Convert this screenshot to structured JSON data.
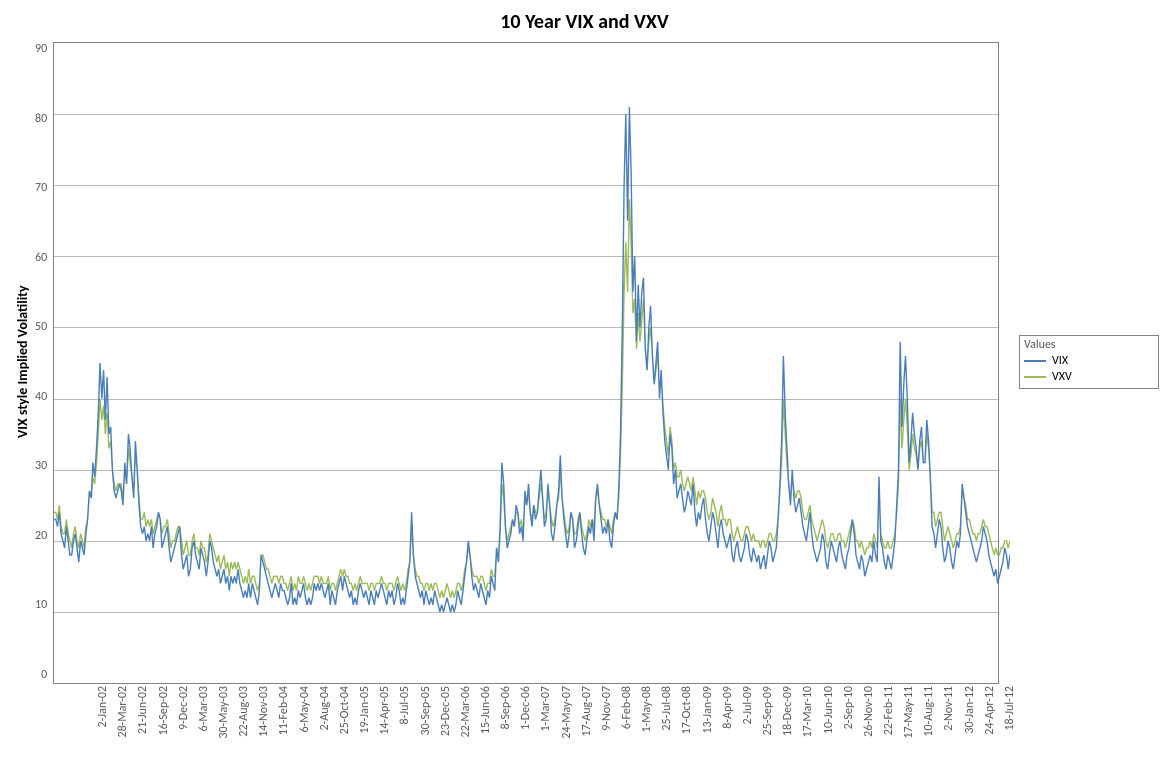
{
  "chart": {
    "type": "line",
    "title": "10 Year VIX and VXV",
    "title_fontsize": 20,
    "title_fontweight": "bold",
    "ylabel": "VIX style Implied Volatility",
    "label_fontsize": 14,
    "background_color": "#ffffff",
    "plot_border_color": "#828282",
    "grid_color": "#828282",
    "grid_opacity": 0.55,
    "tick_font_color": "#595959",
    "tick_fontsize": 12,
    "xtick_rotation": -90,
    "line_width": 1.4,
    "ylim": [
      0,
      90
    ],
    "ytick_step": 10,
    "yticks": [
      90,
      80,
      70,
      60,
      50,
      40,
      30,
      20,
      10,
      0
    ],
    "xticks": [
      "2-Jan-02",
      "28-Mar-02",
      "21-Jun-02",
      "16-Sep-02",
      "9-Dec-02",
      "6-Mar-03",
      "30-May-03",
      "22-Aug-03",
      "14-Nov-03",
      "11-Feb-04",
      "6-May-04",
      "2-Aug-04",
      "25-Oct-04",
      "19-Jan-05",
      "14-Apr-05",
      "8-Jul-05",
      "30-Sep-05",
      "23-Dec-05",
      "22-Mar-06",
      "15-Jun-06",
      "8-Sep-06",
      "1-Dec-06",
      "1-Mar-07",
      "24-May-07",
      "17-Aug-07",
      "9-Nov-07",
      "6-Feb-08",
      "1-May-08",
      "25-Jul-08",
      "17-Oct-08",
      "13-Jan-09",
      "8-Apr-09",
      "2-Jul-09",
      "25-Sep-09",
      "18-Dec-09",
      "17-Mar-10",
      "10-Jun-10",
      "2-Sep-10",
      "26-Nov-10",
      "22-Feb-11",
      "17-May-11",
      "10-Aug-11",
      "2-Nov-11",
      "30-Jan-12",
      "24-Apr-12",
      "18-Jul-12"
    ],
    "legend": {
      "title": "Values",
      "position": "right",
      "items": [
        {
          "label": "VIX",
          "color": "#4a7ebb"
        },
        {
          "label": "VXV",
          "color": "#9bbb59"
        }
      ]
    },
    "series": {
      "VIX": {
        "color": "#4a7ebb",
        "data": [
          23,
          23,
          22,
          24,
          21,
          20,
          19,
          22,
          20,
          18,
          18,
          20,
          21,
          19,
          17,
          20,
          19,
          18,
          21,
          23,
          27,
          26,
          31,
          29,
          33,
          38,
          45,
          40,
          44,
          37,
          43,
          35,
          36,
          30,
          27,
          26,
          27,
          28,
          27,
          25,
          31,
          28,
          35,
          33,
          29,
          26,
          34,
          30,
          25,
          22,
          21,
          22,
          20,
          21,
          20,
          22,
          19,
          21,
          22,
          24,
          23,
          19,
          20,
          21,
          22,
          19,
          17,
          18,
          19,
          20,
          21,
          22,
          18,
          16,
          17,
          18,
          15,
          16,
          19,
          20,
          18,
          17,
          16,
          19,
          18,
          17,
          15,
          17,
          20,
          19,
          17,
          16,
          15,
          16,
          14,
          15,
          16,
          14,
          15,
          13,
          15,
          14,
          15,
          14,
          16,
          14,
          13,
          12,
          13,
          12,
          14,
          12,
          14,
          13,
          12,
          11,
          13,
          18,
          17,
          16,
          15,
          14,
          13,
          12,
          13,
          14,
          13,
          12,
          14,
          13,
          13,
          12,
          11,
          12,
          14,
          11,
          12,
          11,
          13,
          12,
          13,
          14,
          12,
          11,
          12,
          11,
          12,
          14,
          13,
          14,
          13,
          14,
          13,
          12,
          13,
          14,
          11,
          13,
          12,
          11,
          13,
          14,
          15,
          13,
          15,
          14,
          13,
          12,
          13,
          11,
          12,
          11,
          13,
          14,
          13,
          12,
          13,
          12,
          11,
          13,
          12,
          11,
          13,
          12,
          13,
          14,
          13,
          12,
          11,
          13,
          12,
          13,
          11,
          12,
          14,
          13,
          11,
          12,
          11,
          13,
          15,
          17,
          24,
          18,
          15,
          14,
          13,
          12,
          13,
          11,
          13,
          12,
          11,
          12,
          11,
          13,
          12,
          11,
          10,
          11,
          10,
          11,
          12,
          11,
          10,
          11,
          10,
          11,
          13,
          12,
          11,
          13,
          15,
          17,
          20,
          18,
          15,
          13,
          14,
          13,
          12,
          14,
          13,
          12,
          11,
          13,
          12,
          15,
          14,
          13,
          19,
          17,
          22,
          31,
          28,
          22,
          19,
          20,
          21,
          23,
          22,
          25,
          24,
          21,
          22,
          20,
          27,
          25,
          28,
          24,
          22,
          25,
          23,
          24,
          27,
          30,
          26,
          22,
          23,
          28,
          25,
          21,
          20,
          22,
          25,
          27,
          32,
          26,
          23,
          21,
          19,
          21,
          24,
          23,
          19,
          20,
          22,
          24,
          21,
          19,
          18,
          20,
          22,
          21,
          23,
          20,
          26,
          28,
          25,
          23,
          21,
          22,
          21,
          23,
          20,
          19,
          22,
          24,
          23,
          27,
          35,
          50,
          70,
          80,
          65,
          81,
          72,
          55,
          60,
          48,
          56,
          50,
          55,
          57,
          47,
          44,
          50,
          53,
          46,
          42,
          45,
          48,
          40,
          44,
          38,
          34,
          32,
          30,
          35,
          33,
          28,
          30,
          26,
          27,
          28,
          26,
          24,
          25,
          27,
          26,
          25,
          28,
          24,
          22,
          24,
          23,
          25,
          26,
          23,
          21,
          20,
          22,
          24,
          23,
          21,
          19,
          22,
          23,
          21,
          20,
          19,
          20,
          21,
          18,
          17,
          19,
          20,
          18,
          17,
          18,
          19,
          21,
          20,
          18,
          17,
          19,
          18,
          17,
          18,
          16,
          17,
          18,
          16,
          18,
          20,
          19,
          17,
          18,
          19,
          23,
          28,
          34,
          46,
          38,
          33,
          28,
          25,
          30,
          26,
          24,
          25,
          26,
          24,
          22,
          21,
          20,
          22,
          24,
          21,
          19,
          18,
          17,
          18,
          19,
          21,
          20,
          17,
          16,
          18,
          20,
          19,
          18,
          17,
          19,
          20,
          18,
          17,
          16,
          18,
          19,
          21,
          23,
          21,
          18,
          17,
          16,
          18,
          17,
          15,
          16,
          17,
          18,
          17,
          20,
          18,
          17,
          29,
          20,
          19,
          17,
          16,
          18,
          17,
          16,
          18,
          20,
          25,
          30,
          48,
          36,
          42,
          46,
          40,
          31,
          34,
          38,
          35,
          33,
          30,
          34,
          36,
          31,
          31,
          37,
          34,
          29,
          22,
          21,
          19,
          21,
          23,
          22,
          19,
          17,
          18,
          20,
          19,
          17,
          16,
          18,
          20,
          19,
          21,
          28,
          26,
          24,
          22,
          21,
          20,
          19,
          18,
          17,
          18,
          19,
          20,
          22,
          21,
          20,
          18,
          17,
          16,
          15,
          16,
          14,
          15,
          16,
          17,
          19,
          18,
          16,
          18
        ]
      },
      "VXV": {
        "color": "#9bbb59",
        "data": [
          24,
          24,
          23,
          25,
          22,
          21,
          21,
          23,
          21,
          20,
          19,
          21,
          22,
          20,
          19,
          21,
          20,
          19,
          22,
          23,
          27,
          26,
          29,
          28,
          31,
          35,
          40,
          37,
          39,
          35,
          38,
          33,
          34,
          30,
          28,
          27,
          28,
          28,
          28,
          26,
          30,
          28,
          33,
          31,
          29,
          27,
          32,
          30,
          26,
          23,
          23,
          24,
          22,
          23,
          22,
          23,
          21,
          22,
          23,
          24,
          23,
          21,
          22,
          22,
          23,
          21,
          19,
          20,
          20,
          21,
          22,
          22,
          20,
          18,
          19,
          20,
          18,
          18,
          20,
          21,
          19,
          19,
          18,
          20,
          19,
          19,
          17,
          18,
          21,
          20,
          19,
          18,
          17,
          18,
          16,
          17,
          18,
          16,
          17,
          15,
          17,
          16,
          17,
          16,
          17,
          16,
          15,
          14,
          15,
          14,
          16,
          14,
          15,
          15,
          14,
          13,
          14,
          18,
          18,
          17,
          16,
          16,
          15,
          14,
          15,
          15,
          15,
          14,
          15,
          15,
          14,
          14,
          13,
          14,
          15,
          13,
          14,
          13,
          15,
          14,
          14,
          15,
          14,
          13,
          14,
          13,
          14,
          15,
          15,
          15,
          14,
          15,
          14,
          14,
          14,
          15,
          13,
          14,
          14,
          13,
          14,
          15,
          16,
          15,
          16,
          15,
          15,
          14,
          14,
          13,
          14,
          13,
          14,
          15,
          14,
          14,
          14,
          14,
          13,
          14,
          14,
          13,
          14,
          14,
          14,
          15,
          14,
          14,
          13,
          14,
          14,
          14,
          13,
          14,
          15,
          14,
          13,
          14,
          13,
          14,
          16,
          17,
          22,
          18,
          16,
          15,
          15,
          14,
          14,
          13,
          14,
          14,
          13,
          14,
          13,
          14,
          14,
          13,
          12,
          13,
          12,
          13,
          14,
          13,
          12,
          13,
          12,
          13,
          14,
          14,
          13,
          14,
          16,
          17,
          19,
          18,
          16,
          15,
          15,
          15,
          14,
          15,
          15,
          14,
          13,
          14,
          14,
          16,
          15,
          15,
          19,
          17,
          21,
          28,
          26,
          22,
          20,
          21,
          22,
          23,
          22,
          24,
          24,
          22,
          23,
          21,
          26,
          25,
          27,
          24,
          23,
          25,
          24,
          24,
          26,
          28,
          26,
          23,
          24,
          27,
          25,
          23,
          22,
          23,
          25,
          26,
          30,
          26,
          24,
          22,
          21,
          22,
          24,
          23,
          21,
          21,
          23,
          24,
          22,
          21,
          20,
          21,
          23,
          22,
          23,
          22,
          26,
          27,
          25,
          24,
          23,
          23,
          22,
          23,
          22,
          21,
          23,
          24,
          23,
          26,
          32,
          42,
          55,
          62,
          55,
          68,
          62,
          52,
          54,
          47,
          52,
          48,
          51,
          54,
          47,
          44,
          48,
          50,
          46,
          42,
          44,
          46,
          41,
          43,
          39,
          36,
          34,
          32,
          36,
          34,
          30,
          31,
          29,
          29,
          30,
          28,
          27,
          28,
          29,
          28,
          27,
          29,
          27,
          25,
          27,
          26,
          27,
          27,
          26,
          24,
          23,
          24,
          26,
          25,
          24,
          22,
          24,
          25,
          23,
          23,
          22,
          23,
          23,
          21,
          20,
          21,
          22,
          21,
          20,
          20,
          21,
          22,
          22,
          21,
          20,
          21,
          20,
          20,
          20,
          19,
          20,
          20,
          19,
          20,
          21,
          21,
          20,
          20,
          21,
          23,
          27,
          31,
          40,
          35,
          31,
          28,
          26,
          29,
          27,
          26,
          27,
          27,
          26,
          24,
          23,
          23,
          24,
          25,
          23,
          22,
          21,
          20,
          21,
          22,
          23,
          22,
          20,
          19,
          20,
          21,
          21,
          20,
          20,
          21,
          21,
          20,
          20,
          19,
          20,
          21,
          22,
          23,
          22,
          20,
          20,
          19,
          20,
          19,
          18,
          19,
          19,
          20,
          19,
          21,
          20,
          19,
          27,
          21,
          20,
          19,
          19,
          20,
          19,
          19,
          20,
          21,
          24,
          28,
          40,
          33,
          37,
          40,
          36,
          30,
          32,
          35,
          33,
          32,
          30,
          33,
          34,
          31,
          31,
          35,
          33,
          29,
          24,
          24,
          22,
          23,
          24,
          24,
          22,
          20,
          21,
          22,
          21,
          20,
          19,
          20,
          21,
          21,
          22,
          27,
          26,
          25,
          23,
          23,
          22,
          21,
          21,
          20,
          21,
          21,
          22,
          23,
          22,
          22,
          21,
          20,
          19,
          18,
          19,
          18,
          18,
          19,
          19,
          20,
          20,
          19,
          20
        ]
      }
    }
  }
}
